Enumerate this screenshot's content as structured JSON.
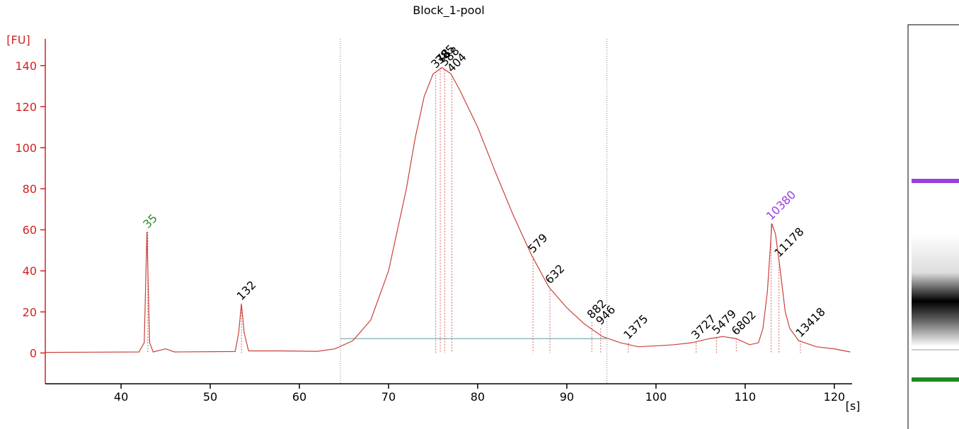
{
  "chart_data": {
    "type": "line",
    "title": "Block_1-pool",
    "y_label": "[FU]",
    "x_label": "[s]",
    "xlim": [
      31.5,
      122
    ],
    "ylim": [
      -15,
      153
    ],
    "xticks": [
      40,
      50,
      60,
      70,
      80,
      90,
      100,
      110,
      120
    ],
    "yticks": [
      0,
      20,
      40,
      60,
      80,
      100,
      120,
      140
    ],
    "series": [
      {
        "color": "#c8413a",
        "x": [
          31.5,
          42,
          42.6,
          42.9,
          43.2,
          43.6,
          45,
          46,
          52.8,
          53.2,
          53.5,
          53.8,
          54.3,
          58,
          62,
          64,
          66,
          68,
          70,
          72,
          73,
          74,
          75,
          76,
          77,
          78,
          80,
          82,
          84,
          86,
          88,
          90,
          92,
          94,
          96,
          97,
          98,
          100,
          102,
          104,
          106,
          107.5,
          109,
          110.5,
          111.5,
          112,
          112.5,
          113,
          113.4,
          113.8,
          114,
          114.5,
          115,
          116,
          118,
          120,
          121.8
        ],
        "values": [
          0.3,
          0.5,
          5,
          59,
          5,
          0.5,
          2,
          0.5,
          0.7,
          10,
          24,
          10,
          1,
          1,
          0.8,
          2,
          6,
          16,
          40,
          80,
          105,
          125,
          136,
          139,
          136,
          128,
          110,
          88,
          67,
          48,
          32,
          22,
          14,
          8,
          5,
          4,
          3,
          3.5,
          4,
          5,
          7,
          8,
          7,
          4,
          5,
          12,
          30,
          63,
          58,
          45,
          38,
          20,
          12,
          6,
          3,
          2,
          0.5
        ]
      }
    ],
    "region": [
      64.6,
      94.5
    ],
    "peaks": [
      {
        "size": 35,
        "x": 43,
        "y": 59,
        "color": "#2e8b2e"
      },
      {
        "size": 132,
        "x": 53.5,
        "y": 24
      },
      {
        "size": 378,
        "x": 75.3,
        "y": 137
      },
      {
        "size": 385,
        "x": 75.8,
        "y": 139
      },
      {
        "size": 388,
        "x": 76.3,
        "y": 138
      },
      {
        "size": 404,
        "x": 77.1,
        "y": 135
      },
      {
        "size": 579,
        "x": 86.2,
        "y": 47
      },
      {
        "size": 632,
        "x": 88.1,
        "y": 32
      },
      {
        "size": 882,
        "x": 92.8,
        "y": 15
      },
      {
        "size": 946,
        "x": 93.8,
        "y": 12
      },
      {
        "size": 1375,
        "x": 96.9,
        "y": 5
      },
      {
        "size": 3727,
        "x": 104.5,
        "y": 5
      },
      {
        "size": 5479,
        "x": 106.8,
        "y": 7.5
      },
      {
        "size": 6802,
        "x": 109,
        "y": 7
      },
      {
        "size": 10380,
        "x": 112.9,
        "y": 63,
        "color": "#9b3de0"
      },
      {
        "size": 11178,
        "x": 113.8,
        "y": 45
      },
      {
        "size": 13418,
        "x": 116.2,
        "y": 6
      }
    ]
  }
}
